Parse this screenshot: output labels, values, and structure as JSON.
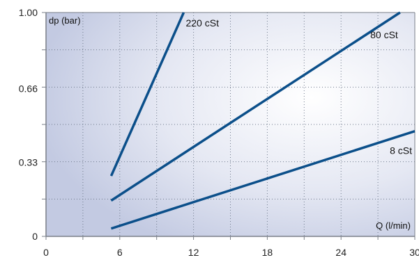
{
  "chart_data": {
    "type": "line",
    "xlabel": "Q (l/min)",
    "ylabel": "dp (bar)",
    "xlim": [
      0,
      30
    ],
    "ylim": [
      0,
      1.0
    ],
    "x_ticks": [
      "0",
      "6",
      "12",
      "18",
      "24",
      "30"
    ],
    "y_ticks": [
      "0",
      "0.33",
      "0.66",
      "1.00"
    ],
    "grid": true,
    "series": [
      {
        "name": "220 cSt",
        "x": [
          5.3,
          11.2
        ],
        "y": [
          0.27,
          1.0
        ]
      },
      {
        "name": "80 cSt",
        "x": [
          5.3,
          28.8
        ],
        "y": [
          0.16,
          1.0
        ]
      },
      {
        "name": "8 cSt",
        "x": [
          5.3,
          30
        ],
        "y": [
          0.035,
          0.47
        ]
      }
    ],
    "colors": {
      "line": "#0b4f8a",
      "border": "#7a7f88",
      "grid": "#6f7a8c",
      "bg_light": "#ffffff",
      "bg_dark": "#c7cde4"
    }
  }
}
